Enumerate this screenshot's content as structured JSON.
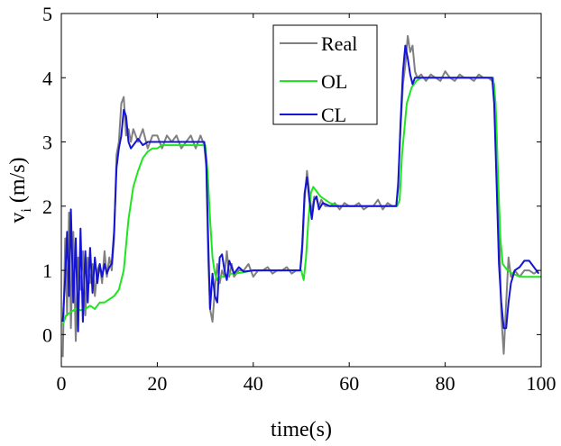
{
  "chart_data": {
    "type": "line",
    "xlabel": "time(s)",
    "ylabel_main": "v",
    "ylabel_sub": "i",
    "ylabel_unit": " (m/s)",
    "xlim": [
      0,
      100
    ],
    "ylim": [
      -0.5,
      5
    ],
    "xticks": [
      0,
      20,
      40,
      60,
      80,
      100
    ],
    "yticks": [
      0,
      1,
      2,
      3,
      4,
      5
    ],
    "grid": false,
    "legend_position": "top-center",
    "series": [
      {
        "name": "Real",
        "color": "#808080",
        "x": [
          0.3,
          0.8,
          1.2,
          1.6,
          2.0,
          2.5,
          3.0,
          3.5,
          4.0,
          4.5,
          5.0,
          5.5,
          6.0,
          6.5,
          7.0,
          7.5,
          8.0,
          8.5,
          9.0,
          9.5,
          10.0,
          10.5,
          11.0,
          11.5,
          12.0,
          12.5,
          13.0,
          13.5,
          14.0,
          14.5,
          15.0,
          16.0,
          17.0,
          18.0,
          19.0,
          20.0,
          21.0,
          22.0,
          23.0,
          24.0,
          25.0,
          26.0,
          27.0,
          28.0,
          29.0,
          29.8,
          30.2,
          30.6,
          31.0,
          31.5,
          32.0,
          32.5,
          33.0,
          33.5,
          34.0,
          34.5,
          35.0,
          35.5,
          36.0,
          37.0,
          38.0,
          39.0,
          40.0,
          41.0,
          42.0,
          43.0,
          44.0,
          45.0,
          46.0,
          47.0,
          48.0,
          49.0,
          49.8,
          50.2,
          50.7,
          51.2,
          51.7,
          52.2,
          52.7,
          53.2,
          53.7,
          54.2,
          55.0,
          56.0,
          57.0,
          58.0,
          59.0,
          60.0,
          61.0,
          62.0,
          63.0,
          64.0,
          65.0,
          66.0,
          67.0,
          68.0,
          69.0,
          69.8,
          70.2,
          70.7,
          71.2,
          71.7,
          72.2,
          72.7,
          73.2,
          73.7,
          74.2,
          75.0,
          76.0,
          77.0,
          78.0,
          79.0,
          80.0,
          81.0,
          82.0,
          83.0,
          84.0,
          85.0,
          86.0,
          87.0,
          88.0,
          89.0,
          89.8,
          90.2,
          90.7,
          91.2,
          91.7,
          92.2,
          92.7,
          93.2,
          93.7,
          94.5,
          95.5,
          96.5,
          97.5,
          98.5,
          99.5
        ],
        "y": [
          -0.35,
          1.5,
          0.3,
          1.9,
          0.1,
          1.6,
          -0.1,
          1.2,
          0.7,
          1.3,
          0.3,
          1.2,
          0.8,
          1.1,
          0.6,
          1.0,
          1.1,
          0.8,
          1.3,
          0.9,
          1.2,
          1.0,
          1.5,
          2.8,
          3.0,
          3.6,
          3.7,
          3.1,
          3.2,
          3.0,
          3.2,
          3.0,
          3.2,
          2.9,
          3.1,
          3.1,
          2.9,
          3.1,
          3.0,
          3.1,
          2.9,
          3.0,
          3.1,
          2.9,
          3.1,
          2.95,
          2.6,
          1.2,
          0.4,
          0.2,
          0.7,
          1.1,
          0.8,
          1.0,
          0.9,
          1.3,
          0.9,
          1.1,
          0.9,
          1.0,
          1.0,
          1.1,
          0.9,
          1.0,
          1.0,
          1.05,
          0.95,
          1.0,
          1.0,
          1.05,
          0.95,
          1.0,
          1.0,
          1.3,
          2.1,
          2.55,
          2.2,
          1.9,
          2.15,
          2.1,
          2.0,
          2.1,
          2.0,
          2.0,
          2.05,
          1.95,
          2.05,
          2.0,
          2.0,
          2.05,
          1.95,
          2.0,
          2.0,
          2.1,
          1.95,
          2.05,
          2.0,
          2.0,
          2.4,
          3.2,
          3.9,
          4.2,
          4.65,
          4.4,
          4.5,
          4.1,
          4.0,
          4.05,
          3.95,
          4.05,
          4.0,
          3.95,
          4.1,
          4.0,
          3.95,
          4.05,
          4.0,
          4.0,
          3.95,
          4.05,
          4.0,
          4.0,
          3.95,
          3.9,
          3.2,
          1.8,
          0.3,
          -0.3,
          0.5,
          1.2,
          0.9,
          1.0,
          0.9,
          1.0,
          1.0,
          0.95,
          1.0
        ]
      },
      {
        "name": "OL",
        "color": "#1ee61e",
        "x": [
          0.3,
          1.0,
          2.0,
          3.0,
          4.0,
          5.0,
          6.0,
          7.0,
          8.0,
          9.0,
          10.0,
          11.0,
          12.0,
          13.0,
          14.0,
          15.0,
          16.0,
          17.0,
          18.0,
          19.0,
          20.0,
          21.0,
          22.0,
          23.0,
          24.0,
          25.0,
          26.0,
          27.0,
          28.0,
          29.0,
          30.0,
          30.5,
          31.0,
          31.5,
          32.0,
          32.5,
          33.0,
          34.0,
          35.0,
          36.0,
          38.0,
          40.0,
          42.0,
          44.0,
          46.0,
          48.0,
          50.0,
          50.5,
          51.0,
          51.5,
          52.0,
          52.5,
          53.0,
          54.0,
          55.0,
          56.0,
          58.0,
          60.0,
          62.0,
          64.0,
          66.0,
          68.0,
          70.0,
          70.5,
          71.0,
          72.0,
          73.0,
          74.0,
          75.0,
          76.0,
          77.0,
          78.0,
          80.0,
          82.0,
          84.0,
          86.0,
          88.0,
          90.0,
          90.5,
          91.0,
          91.5,
          92.0,
          93.0,
          94.0,
          95.0,
          96.0,
          98.0,
          100.0
        ],
        "y": [
          0.15,
          0.3,
          0.35,
          0.4,
          0.38,
          0.4,
          0.45,
          0.4,
          0.5,
          0.5,
          0.55,
          0.6,
          0.7,
          1.0,
          1.8,
          2.3,
          2.55,
          2.75,
          2.85,
          2.9,
          2.9,
          2.95,
          2.95,
          2.95,
          2.95,
          2.95,
          2.95,
          2.95,
          2.95,
          2.95,
          2.95,
          2.5,
          1.8,
          1.2,
          0.95,
          0.85,
          0.9,
          0.9,
          0.95,
          0.95,
          0.97,
          1.0,
          1.0,
          1.0,
          1.0,
          1.0,
          1.0,
          0.85,
          1.2,
          1.8,
          2.2,
          2.3,
          2.25,
          2.15,
          2.1,
          2.05,
          2.0,
          2.0,
          2.0,
          2.0,
          2.0,
          2.0,
          2.0,
          2.1,
          2.8,
          3.6,
          3.85,
          3.95,
          4.0,
          4.0,
          4.0,
          4.0,
          4.0,
          4.0,
          4.0,
          4.0,
          4.0,
          4.0,
          3.6,
          2.5,
          1.5,
          1.1,
          1.0,
          0.95,
          0.92,
          0.9,
          0.9,
          0.9
        ]
      },
      {
        "name": "CL",
        "color": "#1414d2",
        "x": [
          0.3,
          0.8,
          1.2,
          1.6,
          2.0,
          2.5,
          3.0,
          3.5,
          4.0,
          4.5,
          5.0,
          5.5,
          6.0,
          6.5,
          7.0,
          7.5,
          8.0,
          8.5,
          9.0,
          9.5,
          10.0,
          10.5,
          11.0,
          11.5,
          12.0,
          12.5,
          13.0,
          13.5,
          14.0,
          14.5,
          15.0,
          16.0,
          17.0,
          18.0,
          19.0,
          20.0,
          22.0,
          24.0,
          26.0,
          28.0,
          29.8,
          30.2,
          30.6,
          31.0,
          31.5,
          32.0,
          32.5,
          33.0,
          33.5,
          34.0,
          34.5,
          35.0,
          36.0,
          37.0,
          38.0,
          40.0,
          42.0,
          44.0,
          46.0,
          48.0,
          49.8,
          50.2,
          50.7,
          51.2,
          51.7,
          52.2,
          52.7,
          53.2,
          53.7,
          54.5,
          56.0,
          58.0,
          60.0,
          62.0,
          64.0,
          66.0,
          68.0,
          69.8,
          70.2,
          70.7,
          71.2,
          71.7,
          72.2,
          72.7,
          73.2,
          73.7,
          74.5,
          76.0,
          78.0,
          80.0,
          82.0,
          84.0,
          86.0,
          88.0,
          89.8,
          90.2,
          90.7,
          91.2,
          91.7,
          92.2,
          92.7,
          93.2,
          93.7,
          94.5,
          95.5,
          96.5,
          97.5,
          98.5,
          99.5
        ],
        "y": [
          0.2,
          0.9,
          1.6,
          0.6,
          1.95,
          0.5,
          1.5,
          0.05,
          1.65,
          0.2,
          1.3,
          0.5,
          1.35,
          0.65,
          1.2,
          0.8,
          1.1,
          0.9,
          1.1,
          0.95,
          1.05,
          1.1,
          1.6,
          2.6,
          2.9,
          3.1,
          3.5,
          3.4,
          3.0,
          2.9,
          2.95,
          3.05,
          2.95,
          3.0,
          3.0,
          3.0,
          3.0,
          3.0,
          3.0,
          3.0,
          3.0,
          2.7,
          1.5,
          0.4,
          0.95,
          0.6,
          0.5,
          1.2,
          1.25,
          1.0,
          0.85,
          1.15,
          0.95,
          1.05,
          0.98,
          1.0,
          1.0,
          1.0,
          1.0,
          1.0,
          1.0,
          1.4,
          2.2,
          2.45,
          2.1,
          1.8,
          2.1,
          2.15,
          1.95,
          2.05,
          2.0,
          2.0,
          2.0,
          2.0,
          2.0,
          2.0,
          2.0,
          2.0,
          2.3,
          3.3,
          4.1,
          4.5,
          4.3,
          4.05,
          3.9,
          4.0,
          4.0,
          4.0,
          4.0,
          4.0,
          4.0,
          4.0,
          4.0,
          4.0,
          4.0,
          3.6,
          2.4,
          1.1,
          0.5,
          0.1,
          0.1,
          0.5,
          0.8,
          1.0,
          1.05,
          1.15,
          1.15,
          1.05,
          0.95
        ]
      }
    ]
  }
}
